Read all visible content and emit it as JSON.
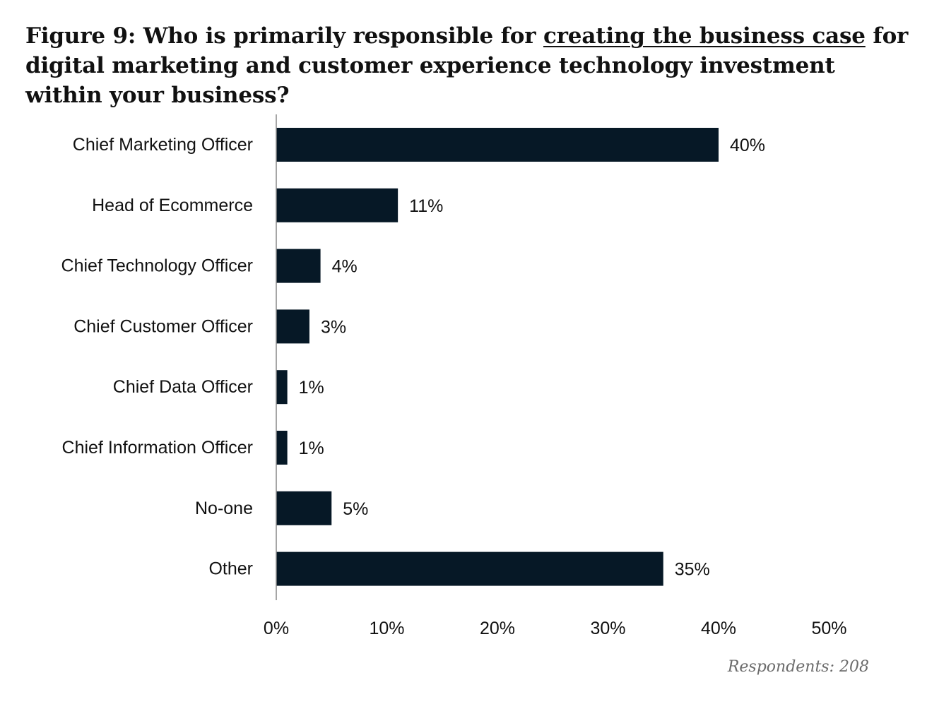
{
  "title": {
    "prefix": "Figure 9: Who is primarily responsible for ",
    "underlined": "creating the business case",
    "suffix": " for digital marketing and customer experience technology investment within your business?"
  },
  "footnote": "Respondents: 208",
  "colors": {
    "bar": "#061826",
    "axis": "#888888",
    "text": "#111111"
  },
  "chart_data": {
    "type": "bar",
    "orientation": "horizontal",
    "title": "Figure 9: Who is primarily responsible for creating the business case for digital marketing and customer experience technology investment within your business?",
    "categories": [
      "Chief Marketing Officer",
      "Head of Ecommerce",
      "Chief Technology Officer",
      "Chief Customer Officer",
      "Chief Data Officer",
      "Chief Information Officer",
      "No-one",
      "Other"
    ],
    "values": [
      40,
      11,
      4,
      3,
      1,
      1,
      5,
      35
    ],
    "value_labels": [
      "40%",
      "11%",
      "4%",
      "3%",
      "1%",
      "1%",
      "5%",
      "35%"
    ],
    "xlim": [
      0,
      50
    ],
    "xticks": [
      0,
      10,
      20,
      30,
      40,
      50
    ],
    "xtick_labels": [
      "0%",
      "10%",
      "20%",
      "30%",
      "40%",
      "50%"
    ],
    "xlabel": "",
    "ylabel": "",
    "grid": false,
    "legend": "none"
  }
}
